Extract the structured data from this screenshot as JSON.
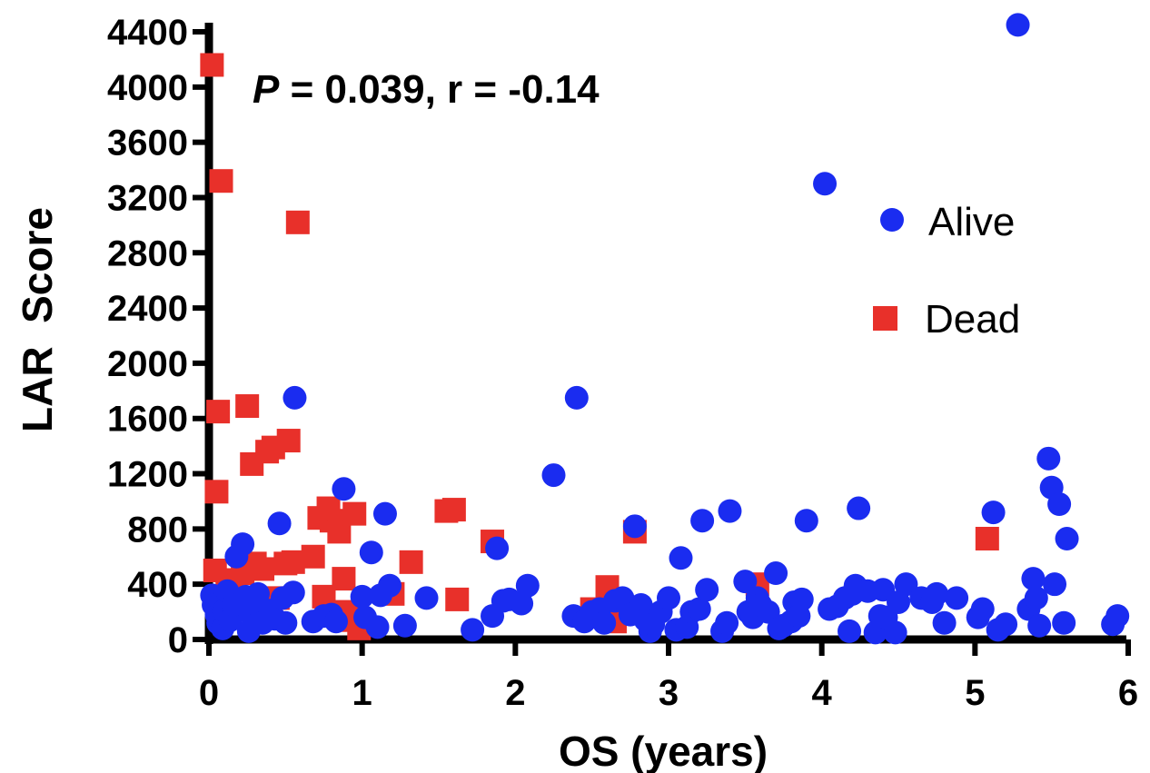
{
  "chart_data": {
    "type": "scatter",
    "title": "",
    "annotation": {
      "p_label": "P",
      "rest": " = 0.039, r = -0.14"
    },
    "xlabel": "OS (years)",
    "ylabel": "LAR  Score",
    "xlim": [
      0,
      6
    ],
    "ylim": [
      0,
      4400
    ],
    "xticks": [
      0,
      1,
      2,
      3,
      4,
      5,
      6
    ],
    "yticks": [
      0,
      400,
      800,
      1200,
      1600,
      2000,
      2400,
      2800,
      3200,
      3600,
      4000,
      4400
    ],
    "grid": false,
    "legend_position": "right",
    "series": [
      {
        "name": "Alive",
        "marker": "circle",
        "color": "#1a2cf0",
        "points": [
          [
            0.02,
            320
          ],
          [
            0.03,
            250
          ],
          [
            0.05,
            180
          ],
          [
            0.06,
            120
          ],
          [
            0.08,
            270
          ],
          [
            0.09,
            80
          ],
          [
            0.1,
            210
          ],
          [
            0.12,
            350
          ],
          [
            0.14,
            140
          ],
          [
            0.16,
            250
          ],
          [
            0.18,
            600
          ],
          [
            0.22,
            690
          ],
          [
            0.24,
            310
          ],
          [
            0.26,
            60
          ],
          [
            0.28,
            180
          ],
          [
            0.3,
            260
          ],
          [
            0.32,
            330
          ],
          [
            0.35,
            120
          ],
          [
            0.4,
            210
          ],
          [
            0.43,
            150
          ],
          [
            0.46,
            840
          ],
          [
            0.48,
            300
          ],
          [
            0.5,
            120
          ],
          [
            0.55,
            340
          ],
          [
            0.56,
            1750
          ],
          [
            0.68,
            130
          ],
          [
            0.75,
            170
          ],
          [
            0.8,
            180
          ],
          [
            0.83,
            130
          ],
          [
            0.88,
            1090
          ],
          [
            1.0,
            310
          ],
          [
            1.02,
            160
          ],
          [
            1.06,
            630
          ],
          [
            1.1,
            90
          ],
          [
            1.12,
            320
          ],
          [
            1.15,
            910
          ],
          [
            1.18,
            390
          ],
          [
            1.28,
            100
          ],
          [
            1.42,
            300
          ],
          [
            1.72,
            70
          ],
          [
            1.85,
            170
          ],
          [
            1.88,
            660
          ],
          [
            1.92,
            280
          ],
          [
            1.96,
            290
          ],
          [
            2.04,
            260
          ],
          [
            2.08,
            390
          ],
          [
            2.25,
            1190
          ],
          [
            2.38,
            170
          ],
          [
            2.4,
            1750
          ],
          [
            2.45,
            130
          ],
          [
            2.5,
            200
          ],
          [
            2.55,
            220
          ],
          [
            2.58,
            120
          ],
          [
            2.65,
            280
          ],
          [
            2.7,
            300
          ],
          [
            2.75,
            180
          ],
          [
            2.78,
            820
          ],
          [
            2.82,
            250
          ],
          [
            2.85,
            140
          ],
          [
            2.88,
            60
          ],
          [
            2.9,
            110
          ],
          [
            2.95,
            200
          ],
          [
            3.0,
            300
          ],
          [
            3.05,
            70
          ],
          [
            3.08,
            590
          ],
          [
            3.12,
            90
          ],
          [
            3.15,
            200
          ],
          [
            3.2,
            220
          ],
          [
            3.22,
            860
          ],
          [
            3.25,
            360
          ],
          [
            3.35,
            60
          ],
          [
            3.38,
            120
          ],
          [
            3.4,
            930
          ],
          [
            3.5,
            420
          ],
          [
            3.52,
            200
          ],
          [
            3.55,
            160
          ],
          [
            3.58,
            300
          ],
          [
            3.6,
            250
          ],
          [
            3.65,
            200
          ],
          [
            3.7,
            480
          ],
          [
            3.72,
            80
          ],
          [
            3.75,
            100
          ],
          [
            3.8,
            130
          ],
          [
            3.82,
            270
          ],
          [
            3.85,
            170
          ],
          [
            3.87,
            290
          ],
          [
            3.9,
            860
          ],
          [
            4.02,
            3300
          ],
          [
            4.05,
            220
          ],
          [
            4.1,
            240
          ],
          [
            4.15,
            300
          ],
          [
            4.18,
            60
          ],
          [
            4.2,
            330
          ],
          [
            4.22,
            390
          ],
          [
            4.24,
            950
          ],
          [
            4.3,
            350
          ],
          [
            4.35,
            50
          ],
          [
            4.38,
            170
          ],
          [
            4.4,
            360
          ],
          [
            4.42,
            160
          ],
          [
            4.48,
            50
          ],
          [
            4.5,
            270
          ],
          [
            4.55,
            400
          ],
          [
            4.65,
            300
          ],
          [
            4.72,
            270
          ],
          [
            4.75,
            330
          ],
          [
            4.8,
            120
          ],
          [
            4.88,
            300
          ],
          [
            5.02,
            160
          ],
          [
            5.05,
            220
          ],
          [
            5.12,
            920
          ],
          [
            5.15,
            70
          ],
          [
            5.2,
            110
          ],
          [
            5.28,
            4450
          ],
          [
            5.35,
            220
          ],
          [
            5.38,
            440
          ],
          [
            5.4,
            300
          ],
          [
            5.42,
            100
          ],
          [
            5.48,
            1310
          ],
          [
            5.5,
            1100
          ],
          [
            5.52,
            400
          ],
          [
            5.55,
            980
          ],
          [
            5.58,
            120
          ],
          [
            5.6,
            730
          ],
          [
            5.9,
            110
          ],
          [
            5.93,
            170
          ]
        ]
      },
      {
        "name": "Dead",
        "marker": "square",
        "color": "#e8302a",
        "points": [
          [
            0.02,
            4160
          ],
          [
            0.04,
            500
          ],
          [
            0.05,
            1070
          ],
          [
            0.06,
            1650
          ],
          [
            0.07,
            230
          ],
          [
            0.08,
            3320
          ],
          [
            0.1,
            280
          ],
          [
            0.12,
            430
          ],
          [
            0.15,
            430
          ],
          [
            0.22,
            480
          ],
          [
            0.25,
            1690
          ],
          [
            0.28,
            1270
          ],
          [
            0.3,
            550
          ],
          [
            0.32,
            170
          ],
          [
            0.35,
            510
          ],
          [
            0.38,
            1360
          ],
          [
            0.42,
            1390
          ],
          [
            0.45,
            300
          ],
          [
            0.5,
            550
          ],
          [
            0.52,
            1440
          ],
          [
            0.55,
            560
          ],
          [
            0.58,
            3020
          ],
          [
            0.68,
            600
          ],
          [
            0.72,
            880
          ],
          [
            0.75,
            310
          ],
          [
            0.78,
            950
          ],
          [
            0.8,
            860
          ],
          [
            0.85,
            780
          ],
          [
            0.88,
            440
          ],
          [
            0.9,
            200
          ],
          [
            0.92,
            140
          ],
          [
            0.95,
            910
          ],
          [
            0.98,
            80
          ],
          [
            1.2,
            330
          ],
          [
            1.32,
            560
          ],
          [
            1.55,
            930
          ],
          [
            1.6,
            940
          ],
          [
            1.62,
            290
          ],
          [
            1.85,
            710
          ],
          [
            2.5,
            220
          ],
          [
            2.6,
            380
          ],
          [
            2.65,
            130
          ],
          [
            2.78,
            780
          ],
          [
            3.58,
            400
          ],
          [
            5.08,
            730
          ]
        ]
      }
    ]
  }
}
